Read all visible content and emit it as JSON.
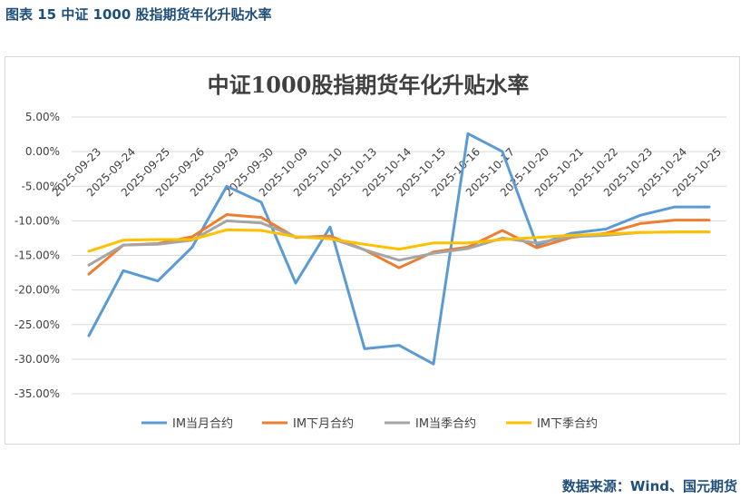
{
  "caption": "图表 15  中证 1000 股指期货年化升贴水率",
  "source": "数据来源：Wind、国元期货",
  "colors": {
    "caption": "#1f4e79",
    "title": "#404040",
    "axis_text": "#404040",
    "grid": "#d9d9d9"
  },
  "chart_data": {
    "type": "line",
    "title": "中证1000股指期货年化升贴水率",
    "xlabel": "",
    "ylabel": "",
    "x": [
      "2025-09-23",
      "2025-09-24",
      "2025-09-25",
      "2025-09-26",
      "2025-09-29",
      "2025-09-30",
      "2025-10-09",
      "2025-10-10",
      "2025-10-13",
      "2025-10-14",
      "2025-10-15",
      "2025-10-16",
      "2025-10-17",
      "2025-10-20",
      "2025-10-21",
      "2025-10-22",
      "2025-10-23",
      "2025-10-24",
      "2025-10-25"
    ],
    "y_ticks": [
      "5.00%",
      "0.00%",
      "-5.00%",
      "-10.00%",
      "-15.00%",
      "-20.00%",
      "-25.00%",
      "-30.00%",
      "-35.00%"
    ],
    "ylim": [
      -35,
      5
    ],
    "grid": true,
    "legend_position": "bottom",
    "series": [
      {
        "name": "IM当月合约",
        "color": "#5b9bd5",
        "values": [
          -26.6,
          -17.2,
          -18.7,
          -13.8,
          -5.0,
          -7.3,
          -19.0,
          -10.9,
          -28.5,
          -28.0,
          -30.7,
          2.6,
          0.0,
          -13.5,
          -11.8,
          -11.2,
          -9.2,
          -8.0,
          -8.0
        ]
      },
      {
        "name": "IM下月合约",
        "color": "#ed7d31",
        "values": [
          -17.7,
          -13.5,
          -13.3,
          -12.3,
          -9.1,
          -9.5,
          -12.4,
          -12.2,
          -14.2,
          -16.8,
          -14.5,
          -13.8,
          -11.4,
          -13.9,
          -12.4,
          -11.8,
          -10.4,
          -9.9,
          -9.9
        ]
      },
      {
        "name": "IM当季合约",
        "color": "#a5a5a5",
        "values": [
          -16.4,
          -13.5,
          -13.4,
          -12.8,
          -10.0,
          -10.3,
          -12.3,
          -12.5,
          -14.2,
          -15.7,
          -14.7,
          -14.0,
          -12.5,
          -13.2,
          -12.3,
          -12.1,
          -11.7,
          -11.6,
          -11.6
        ]
      },
      {
        "name": "IM下季合约",
        "color": "#ffc000",
        "values": [
          -14.4,
          -12.8,
          -12.7,
          -12.7,
          -11.3,
          -11.4,
          -12.3,
          -12.6,
          -13.4,
          -14.1,
          -13.2,
          -13.2,
          -12.7,
          -12.4,
          -12.1,
          -11.9,
          -11.7,
          -11.6,
          -11.6
        ]
      }
    ]
  }
}
